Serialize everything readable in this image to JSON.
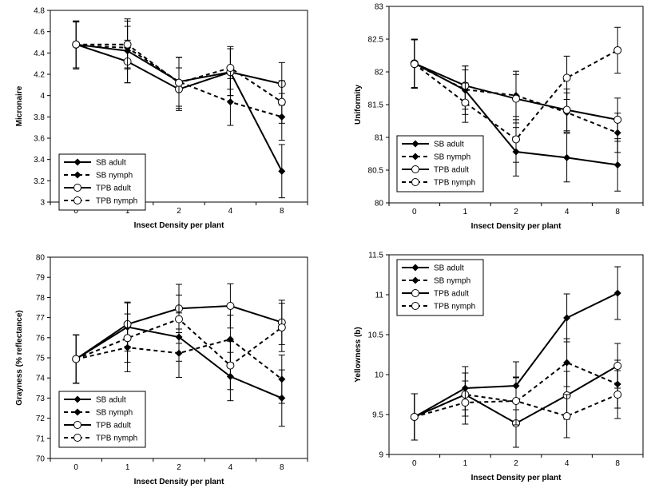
{
  "chart_data": [
    {
      "type": "line",
      "categories": [
        "0",
        "1",
        "2",
        "4",
        "8"
      ],
      "xlabel": "Insect Density per plant",
      "ylabel": "Micronaire",
      "ylim": [
        3,
        4.8
      ],
      "yticks": [
        "3",
        "3.2",
        "3.4",
        "3.6",
        "3.8",
        "4",
        "4.2",
        "4.4",
        "4.6",
        "4.8"
      ],
      "legend_position": "bottom-left",
      "series": [
        {
          "name": "SB adult",
          "values": [
            4.48,
            4.42,
            4.13,
            4.22,
            3.29
          ],
          "errors": [
            0.22,
            0.3,
            0.23,
            0.22,
            0.25
          ],
          "marker": "diamond",
          "line": "solid"
        },
        {
          "name": "SB nymph",
          "values": [
            4.47,
            4.45,
            4.13,
            3.94,
            3.8
          ],
          "errors": [
            0.22,
            0.2,
            0.23,
            0.22,
            0.22
          ],
          "marker": "diamond",
          "line": "dashed"
        },
        {
          "name": "TPB adult",
          "values": [
            4.48,
            4.32,
            4.06,
            4.22,
            4.11
          ],
          "errors": [
            0.22,
            0.2,
            0.2,
            0.22,
            0.2
          ],
          "marker": "circle",
          "line": "solid"
        },
        {
          "name": "TPB nymph",
          "values": [
            4.48,
            4.48,
            4.12,
            4.26,
            3.94
          ],
          "errors": [
            0.22,
            0.22,
            0.24,
            0.2,
            0.2
          ],
          "marker": "circle",
          "line": "dashed"
        }
      ]
    },
    {
      "type": "line",
      "categories": [
        "0",
        "1",
        "2",
        "4",
        "8"
      ],
      "xlabel": "Insect Density per plant",
      "ylabel": "Uniformity",
      "ylim": [
        80,
        83
      ],
      "yticks": [
        "80",
        "80.5",
        "81",
        "81.5",
        "82",
        "82.5",
        "83"
      ],
      "legend_position": "bottom-left",
      "series": [
        {
          "name": "SB adult",
          "values": [
            82.13,
            81.72,
            80.78,
            80.69,
            80.58
          ],
          "errors": [
            0.37,
            0.37,
            0.37,
            0.37,
            0.4
          ],
          "marker": "diamond",
          "line": "solid"
        },
        {
          "name": "SB nymph",
          "values": [
            82.12,
            81.73,
            81.64,
            81.38,
            81.07
          ],
          "errors": [
            0.37,
            0.3,
            0.37,
            0.3,
            0.3
          ],
          "marker": "diamond",
          "line": "dashed"
        },
        {
          "name": "TPB adult",
          "values": [
            82.13,
            81.79,
            81.59,
            81.42,
            81.27
          ],
          "errors": [
            0.37,
            0.3,
            0.37,
            0.32,
            0.33
          ],
          "marker": "circle",
          "line": "solid"
        },
        {
          "name": "TPB nymph",
          "values": [
            82.12,
            81.53,
            80.97,
            81.91,
            82.33
          ],
          "errors": [
            0.37,
            0.3,
            0.35,
            0.33,
            0.35
          ],
          "marker": "circle",
          "line": "dashed"
        }
      ]
    },
    {
      "type": "line",
      "categories": [
        "0",
        "1",
        "2",
        "4",
        "8"
      ],
      "xlabel": "Insect Density per plant",
      "ylabel": "Grayness (% reflectance)",
      "ylim": [
        70,
        80
      ],
      "yticks": [
        "70",
        "71",
        "72",
        "73",
        "74",
        "75",
        "76",
        "77",
        "78",
        "79",
        "80"
      ],
      "legend_position": "bottom-left",
      "series": [
        {
          "name": "SB adult",
          "values": [
            74.94,
            76.53,
            76.03,
            74.07,
            73.0
          ],
          "errors": [
            1.2,
            1.2,
            1.2,
            1.2,
            1.4
          ],
          "marker": "diamond",
          "line": "solid"
        },
        {
          "name": "SB nymph",
          "values": [
            74.93,
            75.51,
            75.23,
            75.92,
            73.94
          ],
          "errors": [
            1.2,
            1.2,
            1.2,
            1.2,
            1.2
          ],
          "marker": "diamond",
          "line": "dashed"
        },
        {
          "name": "TPB adult",
          "values": [
            74.94,
            76.67,
            77.45,
            77.58,
            76.76
          ],
          "errors": [
            1.2,
            1.1,
            1.2,
            1.1,
            1.1
          ],
          "marker": "circle",
          "line": "solid"
        },
        {
          "name": "TPB nymph",
          "values": [
            74.94,
            75.98,
            76.92,
            74.62,
            76.51
          ],
          "errors": [
            1.2,
            1.2,
            1.2,
            1.2,
            1.2
          ],
          "marker": "circle",
          "line": "dashed"
        }
      ]
    },
    {
      "type": "line",
      "categories": [
        "0",
        "1",
        "2",
        "4",
        "8"
      ],
      "xlabel": "Insect Density per plant",
      "ylabel": "Yellowness (b)",
      "ylim": [
        9,
        11.5
      ],
      "yticks": [
        "9",
        "9.5",
        "10",
        "10.5",
        "11",
        "11.5"
      ],
      "legend_position": "top-left",
      "series": [
        {
          "name": "SB adult",
          "values": [
            9.47,
            9.83,
            9.86,
            10.71,
            11.02
          ],
          "errors": [
            0.29,
            0.27,
            0.3,
            0.3,
            0.33
          ],
          "marker": "diamond",
          "line": "solid"
        },
        {
          "name": "SB nymph",
          "values": [
            9.47,
            9.75,
            9.66,
            10.15,
            9.88
          ],
          "errors": [
            0.29,
            0.27,
            0.3,
            0.3,
            0.3
          ],
          "marker": "diamond",
          "line": "dashed"
        },
        {
          "name": "TPB adult",
          "values": [
            9.47,
            9.75,
            9.39,
            9.74,
            10.11
          ],
          "errors": [
            0.29,
            0.27,
            0.3,
            0.3,
            0.28
          ],
          "marker": "circle",
          "line": "solid"
        },
        {
          "name": "TPB nymph",
          "values": [
            9.47,
            9.65,
            9.67,
            9.48,
            9.75
          ],
          "errors": [
            0.29,
            0.27,
            0.3,
            0.27,
            0.3
          ],
          "marker": "circle",
          "line": "dashed"
        }
      ]
    }
  ]
}
